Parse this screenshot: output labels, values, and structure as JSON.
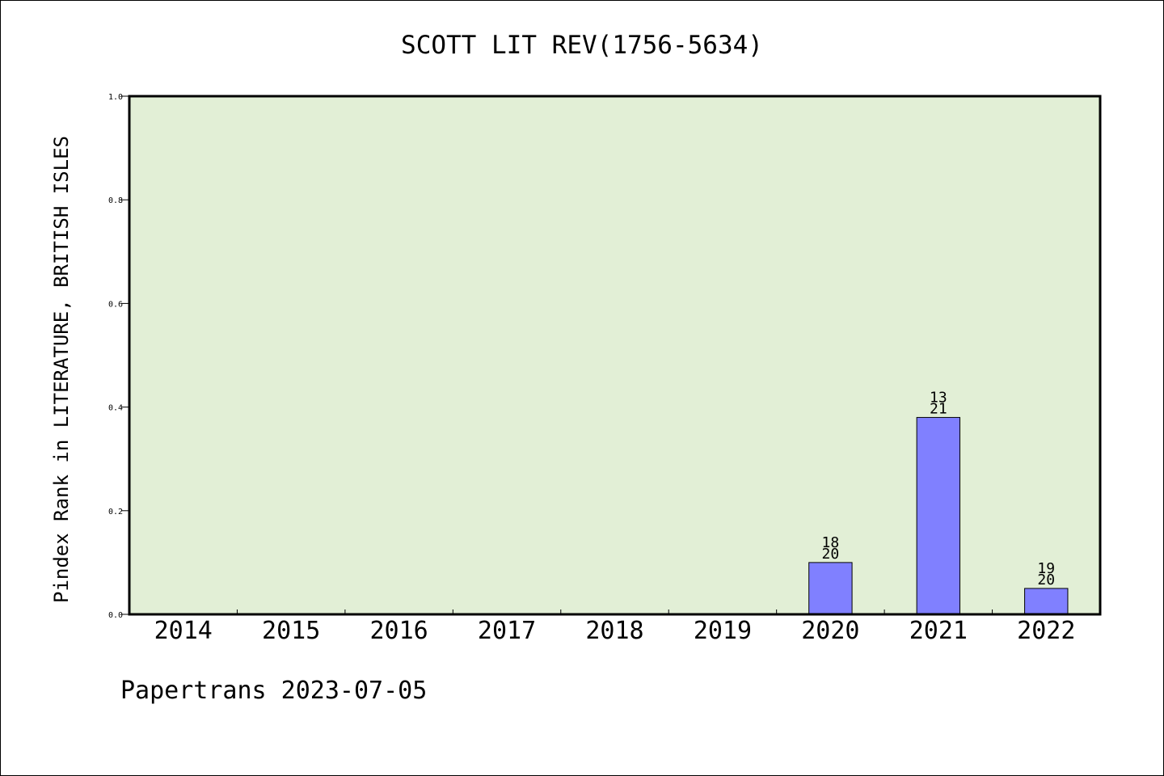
{
  "chart_data": {
    "type": "bar",
    "title": "SCOTT LIT REV(1756-5634)",
    "ylabel": "Pindex Rank in LITERATURE, BRITISH ISLES",
    "xlabel": "",
    "ylim": [
      0,
      1.0
    ],
    "yticks": [
      "0.0",
      "0.2",
      "0.4",
      "0.6",
      "0.8",
      "1.0"
    ],
    "categories": [
      "2014",
      "2015",
      "2016",
      "2017",
      "2018",
      "2019",
      "2020",
      "2021",
      "2022"
    ],
    "values": [
      null,
      null,
      null,
      null,
      null,
      null,
      0.1,
      0.38,
      0.05
    ],
    "rank_labels": [
      null,
      null,
      null,
      null,
      null,
      null,
      "18",
      "13",
      "19"
    ],
    "total_labels": [
      null,
      null,
      null,
      null,
      null,
      null,
      "20",
      "21",
      "20"
    ],
    "grid": false,
    "plot_background": "#e2efd6",
    "bar_color": "#8080ff"
  },
  "footer": "Papertrans 2023-07-05"
}
